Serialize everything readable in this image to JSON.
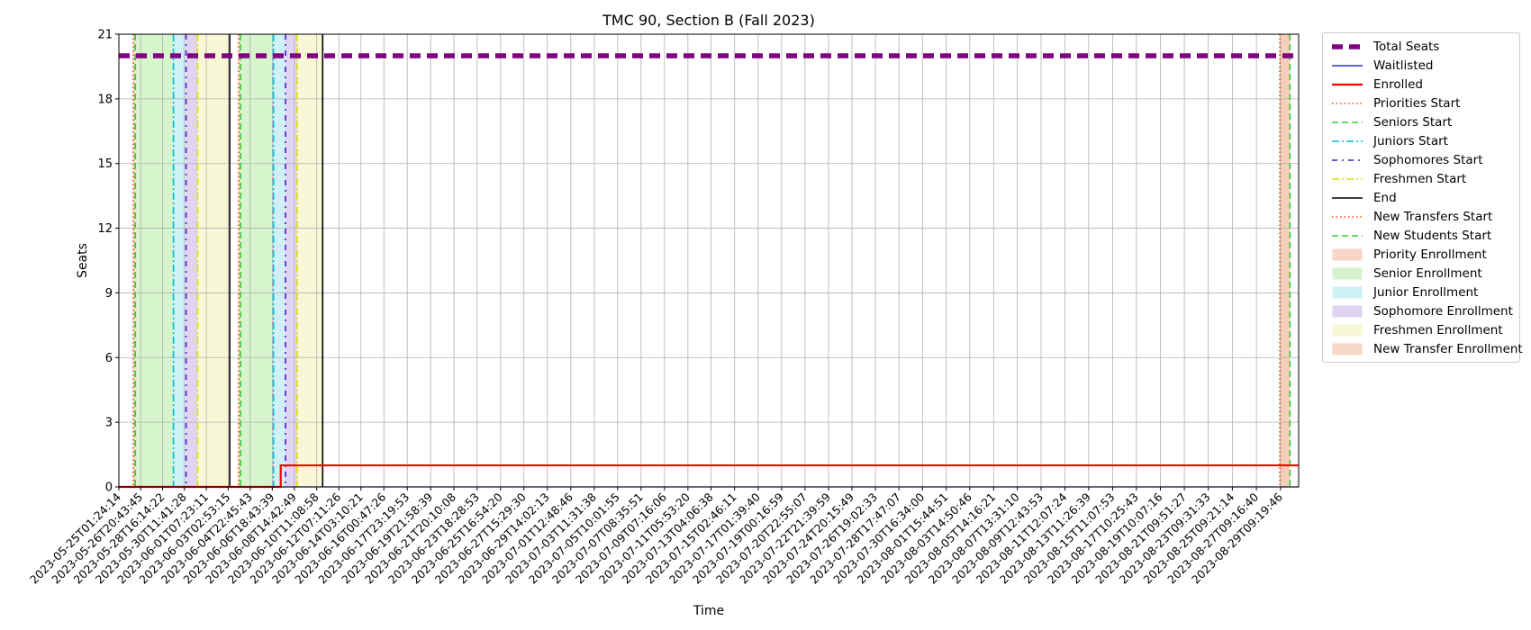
{
  "chart_data": {
    "type": "line",
    "title": "TMC 90, Section B (Fall 2023)",
    "xlabel": "Time",
    "ylabel": "Seats",
    "ylim": [
      0,
      21
    ],
    "xlim": [
      "2023-05-25T01:24:14",
      "2023-08-30T21:19:46"
    ],
    "yticks": [
      0,
      3,
      6,
      9,
      12,
      15,
      18,
      21
    ],
    "xticks": [
      "2023-05-25T01:24:14",
      "2023-05-26T20:43:45",
      "2023-05-28T16:14:22",
      "2023-05-30T11:41:28",
      "2023-06-01T07:23:11",
      "2023-06-03T02:53:15",
      "2023-06-04T22:45:43",
      "2023-06-06T18:43:39",
      "2023-06-08T14:42:49",
      "2023-06-10T11:08:58",
      "2023-06-12T07:11:26",
      "2023-06-14T03:10:21",
      "2023-06-16T00:47:26",
      "2023-06-17T23:19:53",
      "2023-06-19T21:58:39",
      "2023-06-21T20:10:08",
      "2023-06-23T18:28:53",
      "2023-06-25T16:54:20",
      "2023-06-27T15:29:30",
      "2023-06-29T14:02:13",
      "2023-07-01T12:48:46",
      "2023-07-03T11:31:38",
      "2023-07-05T10:01:55",
      "2023-07-07T08:35:51",
      "2023-07-09T07:16:06",
      "2023-07-11T05:53:20",
      "2023-07-13T04:06:38",
      "2023-07-15T02:46:11",
      "2023-07-17T01:39:40",
      "2023-07-19T00:16:59",
      "2023-07-20T22:55:07",
      "2023-07-22T21:39:59",
      "2023-07-24T20:15:49",
      "2023-07-26T19:02:33",
      "2023-07-28T17:47:07",
      "2023-07-30T16:34:00",
      "2023-08-01T15:44:51",
      "2023-08-03T14:50:46",
      "2023-08-05T14:16:21",
      "2023-08-07T13:31:10",
      "2023-08-09T12:43:53",
      "2023-08-11T12:07:24",
      "2023-08-13T11:26:39",
      "2023-08-15T11:07:53",
      "2023-08-17T10:25:43",
      "2023-08-19T10:07:16",
      "2023-08-21T09:51:27",
      "2023-08-23T09:31:33",
      "2023-08-25T09:21:14",
      "2023-08-27T09:16:40",
      "2023-08-29T09:19:46"
    ],
    "series": [
      {
        "name": "Total Seats",
        "color": "#800080",
        "style": "dashed-thick",
        "x": [
          "2023-05-25T01:24:14",
          "2023-08-30T21:19:46"
        ],
        "y": [
          20,
          20
        ]
      },
      {
        "name": "Waitlisted",
        "color": "#3333cc",
        "style": "solid",
        "x": [
          "2023-05-25T01:24:14",
          "2023-08-30T21:19:46"
        ],
        "y": [
          0,
          0
        ]
      },
      {
        "name": "Enrolled",
        "color": "#ff0000",
        "style": "step-thick",
        "x": [
          "2023-05-25T01:24:14",
          "2023-06-07T11:30:00",
          "2023-08-30T21:19:46"
        ],
        "y": [
          0,
          1,
          1
        ]
      }
    ],
    "vertical_lines": [
      {
        "name": "Priorities Start",
        "color": "#ff4500",
        "style": "dotted",
        "x": [
          "2023-05-26T06:00:00",
          "2023-06-03T23:30:00",
          "2023-08-29T08:00:00"
        ]
      },
      {
        "name": "Seniors Start",
        "color": "#33cc33",
        "style": "dashed",
        "x": [
          "2023-05-26T10:00:00",
          "2023-06-04T03:30:00"
        ]
      },
      {
        "name": "Juniors Start",
        "color": "#00bcd4",
        "style": "dashdot",
        "x": [
          "2023-05-29T14:00:00",
          "2023-06-06T21:00:00"
        ]
      },
      {
        "name": "Sophomores Start",
        "color": "#5511cc",
        "style": "dashdot2",
        "x": [
          "2023-05-30T15:00:00",
          "2023-06-07T21:00:00"
        ]
      },
      {
        "name": "Freshmen Start",
        "color": "#dddd00",
        "style": "dashdot",
        "x": [
          "2023-05-31T14:00:00",
          "2023-06-08T20:00:00"
        ]
      },
      {
        "name": "End",
        "color": "#000000",
        "style": "solid",
        "x": [
          "2023-06-03T06:00:00",
          "2023-06-10T23:00:00"
        ]
      },
      {
        "name": "New Transfers Start",
        "color": "#ff4500",
        "style": "dotted",
        "x": [
          "2023-08-29T08:00:00"
        ]
      },
      {
        "name": "New Students Start",
        "color": "#33cc33",
        "style": "dashed",
        "x": [
          "2023-08-30T04:00:00"
        ]
      }
    ],
    "spans": [
      {
        "name": "Priority Enrollment",
        "color": "#f4cdb8",
        "ranges": [
          [
            "2023-05-26T06:00:00",
            "2023-05-26T10:00:00"
          ],
          [
            "2023-06-03T23:30:00",
            "2023-06-04T03:30:00"
          ],
          [
            "2023-08-29T08:00:00",
            "2023-08-30T04:00:00"
          ]
        ]
      },
      {
        "name": "Senior Enrollment",
        "color": "#ccf2c0",
        "ranges": [
          [
            "2023-05-26T10:00:00",
            "2023-05-29T14:00:00"
          ],
          [
            "2023-06-04T03:30:00",
            "2023-06-06T21:00:00"
          ]
        ]
      },
      {
        "name": "Junior Enrollment",
        "color": "#c2eef4",
        "ranges": [
          [
            "2023-05-29T14:00:00",
            "2023-05-30T15:00:00"
          ],
          [
            "2023-06-06T21:00:00",
            "2023-06-07T21:00:00"
          ]
        ]
      },
      {
        "name": "Sophomore Enrollment",
        "color": "#d8c8f0",
        "ranges": [
          [
            "2023-05-30T15:00:00",
            "2023-05-31T14:00:00"
          ],
          [
            "2023-06-07T21:00:00",
            "2023-06-08T20:00:00"
          ]
        ]
      },
      {
        "name": "Freshmen Enrollment",
        "color": "#f6f6cc",
        "ranges": [
          [
            "2023-05-31T14:00:00",
            "2023-06-03T06:00:00"
          ],
          [
            "2023-06-08T20:00:00",
            "2023-06-10T23:00:00"
          ]
        ]
      },
      {
        "name": "New Transfer Enrollment",
        "color": "#f4cdb8",
        "ranges": [
          [
            "2023-08-29T08:00:00",
            "2023-08-30T04:00:00"
          ]
        ]
      }
    ],
    "grid": true,
    "legend_position": "outside-right"
  },
  "legend": [
    {
      "label": "Total Seats",
      "kind": "line",
      "color": "#800080",
      "style": "dashed-thick"
    },
    {
      "label": "Waitlisted",
      "kind": "line",
      "color": "#3333cc",
      "style": "solid"
    },
    {
      "label": "Enrolled",
      "kind": "line",
      "color": "#ff0000",
      "style": "solid-thick"
    },
    {
      "label": "Priorities Start",
      "kind": "line",
      "color": "#ff4500",
      "style": "dotted"
    },
    {
      "label": "Seniors Start",
      "kind": "line",
      "color": "#33cc33",
      "style": "dashed"
    },
    {
      "label": "Juniors Start",
      "kind": "line",
      "color": "#00bcd4",
      "style": "dashdot"
    },
    {
      "label": "Sophomores Start",
      "kind": "line",
      "color": "#5511cc",
      "style": "dashdot2"
    },
    {
      "label": "Freshmen Start",
      "kind": "line",
      "color": "#dddd00",
      "style": "dashdot"
    },
    {
      "label": "End",
      "kind": "line",
      "color": "#000000",
      "style": "solid"
    },
    {
      "label": "New Transfers Start",
      "kind": "line",
      "color": "#ff4500",
      "style": "dotted"
    },
    {
      "label": "New Students Start",
      "kind": "line",
      "color": "#33cc33",
      "style": "dashed"
    },
    {
      "label": "Priority Enrollment",
      "kind": "patch",
      "color": "#f4cdb8"
    },
    {
      "label": "Senior Enrollment",
      "kind": "patch",
      "color": "#ccf2c0"
    },
    {
      "label": "Junior Enrollment",
      "kind": "patch",
      "color": "#c2eef4"
    },
    {
      "label": "Sophomore Enrollment",
      "kind": "patch",
      "color": "#d8c8f0"
    },
    {
      "label": "Freshmen Enrollment",
      "kind": "patch",
      "color": "#f6f6cc"
    },
    {
      "label": "New Transfer Enrollment",
      "kind": "patch",
      "color": "#f4cdb8"
    }
  ]
}
